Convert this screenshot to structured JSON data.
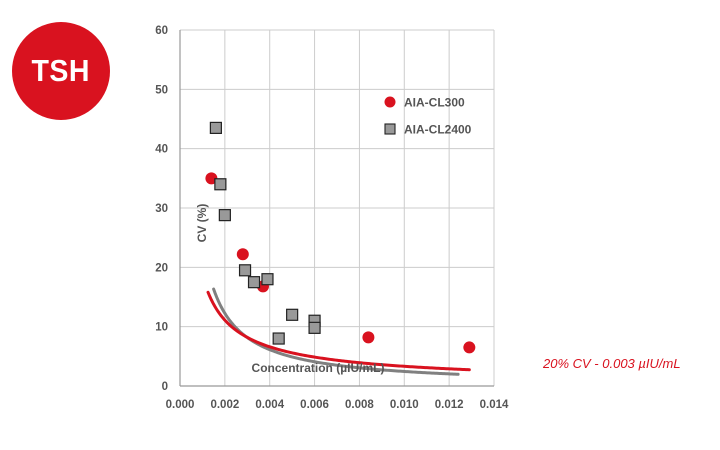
{
  "badge": {
    "text": "TSH"
  },
  "note": "20% CV - 0.003 µIU/mL",
  "colors": {
    "red": "#d9121f",
    "gray": "#808080",
    "grid": "#cccccc"
  },
  "chart_data": {
    "type": "scatter",
    "title": "",
    "xlabel": "Concentration (µIU/mL)",
    "ylabel": "CV (%)",
    "xlim": [
      0,
      0.014
    ],
    "ylim": [
      0,
      60
    ],
    "xticks": [
      "0.000",
      "0.002",
      "0.004",
      "0.006",
      "0.008",
      "0.010",
      "0.012",
      "0.014"
    ],
    "yticks": [
      "0",
      "10",
      "20",
      "30",
      "40",
      "50",
      "60"
    ],
    "grid": true,
    "legend": "top-right",
    "series": [
      {
        "name": "AIA-CL300",
        "marker": "circle",
        "color": "#d9121f",
        "points": [
          [
            0.0014,
            35.0
          ],
          [
            0.0028,
            22.2
          ],
          [
            0.0037,
            16.8
          ],
          [
            0.0084,
            8.2
          ],
          [
            0.0129,
            6.5
          ]
        ],
        "fit": {
          "kind": "power",
          "a": 0.105,
          "b": -0.75,
          "x_from": 0.00125,
          "x_to": 0.0129
        }
      },
      {
        "name": "AIA-CL2400",
        "marker": "square",
        "color": "#808080",
        "points": [
          [
            0.0016,
            43.5
          ],
          [
            0.0018,
            34.0
          ],
          [
            0.002,
            28.8
          ],
          [
            0.0029,
            19.5
          ],
          [
            0.0033,
            17.5
          ],
          [
            0.0039,
            18.0
          ],
          [
            0.0044,
            8.0
          ],
          [
            0.005,
            12.0
          ],
          [
            0.006,
            11.0
          ],
          [
            0.006,
            9.8
          ]
        ],
        "fit": {
          "kind": "power",
          "a": 0.0245,
          "b": -1.0,
          "x_from": 0.0015,
          "x_to": 0.0124
        }
      }
    ]
  }
}
